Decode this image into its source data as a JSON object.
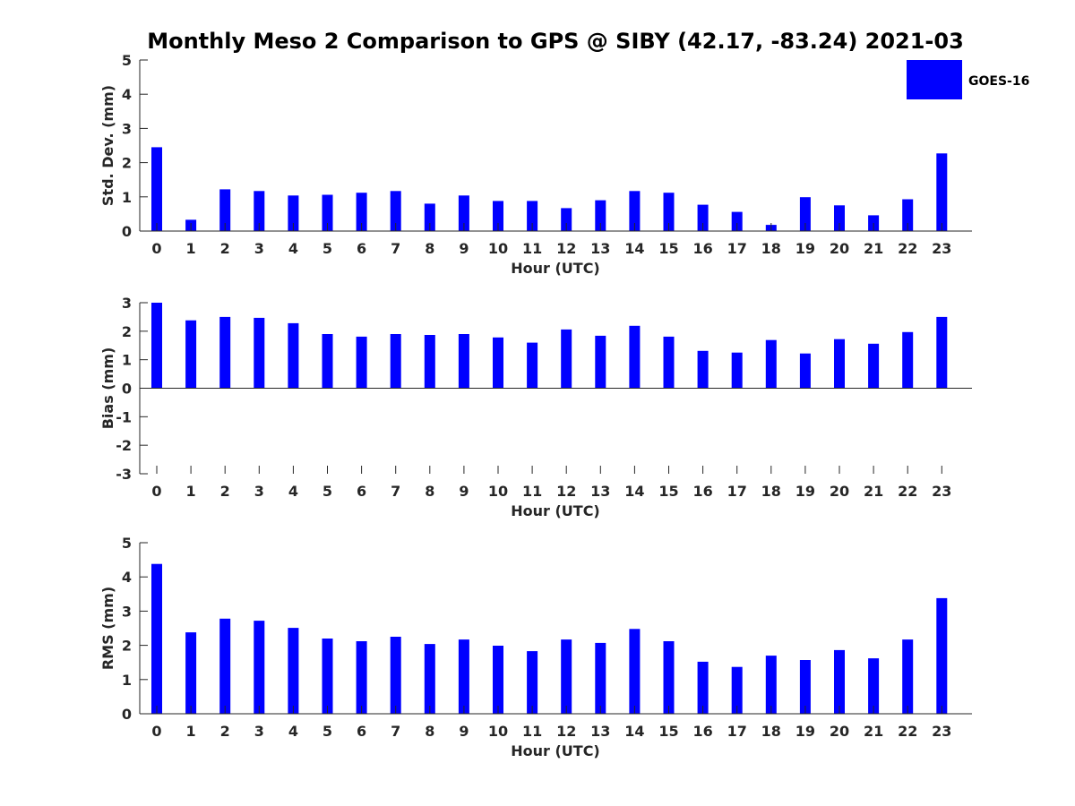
{
  "title": "Monthly Meso 2 Comparison to GPS @ SIBY (42.17, -83.24) 2021-03",
  "colors": {
    "bar": "#0000ff",
    "axis": "#262626",
    "title": "#000000"
  },
  "legend": {
    "label": "GOES-16",
    "placement": "top-right"
  },
  "chart_data": [
    {
      "type": "bar",
      "xlabel": "Hour (UTC)",
      "ylabel": "Std. Dev. (mm)",
      "ylim": [
        0,
        5
      ],
      "yticks": [
        0,
        1,
        2,
        3,
        4,
        5
      ],
      "categories": [
        "0",
        "1",
        "2",
        "3",
        "4",
        "5",
        "6",
        "7",
        "8",
        "9",
        "10",
        "11",
        "12",
        "13",
        "14",
        "15",
        "16",
        "17",
        "18",
        "19",
        "20",
        "21",
        "22",
        "23"
      ],
      "series": [
        {
          "name": "GOES-16",
          "values": [
            2.45,
            0.33,
            1.22,
            1.17,
            1.04,
            1.06,
            1.12,
            1.17,
            0.8,
            1.04,
            0.88,
            0.88,
            0.67,
            0.9,
            1.17,
            1.12,
            0.77,
            0.56,
            0.18,
            0.99,
            0.75,
            0.46,
            0.93,
            2.27
          ]
        }
      ]
    },
    {
      "type": "bar",
      "xlabel": "Hour (UTC)",
      "ylabel": "Bias (mm)",
      "ylim": [
        -3,
        3
      ],
      "yticks": [
        -3,
        -2,
        -1,
        0,
        1,
        2,
        3
      ],
      "categories": [
        "0",
        "1",
        "2",
        "3",
        "4",
        "5",
        "6",
        "7",
        "8",
        "9",
        "10",
        "11",
        "12",
        "13",
        "14",
        "15",
        "16",
        "17",
        "18",
        "19",
        "20",
        "21",
        "22",
        "23"
      ],
      "series": [
        {
          "name": "GOES-16",
          "values": [
            3.0,
            2.38,
            2.5,
            2.47,
            2.28,
            1.9,
            1.81,
            1.9,
            1.87,
            1.9,
            1.78,
            1.6,
            2.06,
            1.84,
            2.19,
            1.81,
            1.31,
            1.25,
            1.69,
            1.22,
            1.72,
            1.56,
            1.97,
            2.5
          ]
        }
      ]
    },
    {
      "type": "bar",
      "xlabel": "Hour (UTC)",
      "ylabel": "RMS (mm)",
      "ylim": [
        0,
        5
      ],
      "yticks": [
        0,
        1,
        2,
        3,
        4,
        5
      ],
      "categories": [
        "0",
        "1",
        "2",
        "3",
        "4",
        "5",
        "6",
        "7",
        "8",
        "9",
        "10",
        "11",
        "12",
        "13",
        "14",
        "15",
        "16",
        "17",
        "18",
        "19",
        "20",
        "21",
        "22",
        "23"
      ],
      "series": [
        {
          "name": "GOES-16",
          "values": [
            4.38,
            2.38,
            2.78,
            2.72,
            2.51,
            2.2,
            2.12,
            2.25,
            2.04,
            2.17,
            1.99,
            1.83,
            2.17,
            2.07,
            2.48,
            2.12,
            1.52,
            1.37,
            1.7,
            1.57,
            1.86,
            1.62,
            2.17,
            3.38
          ]
        }
      ]
    }
  ]
}
